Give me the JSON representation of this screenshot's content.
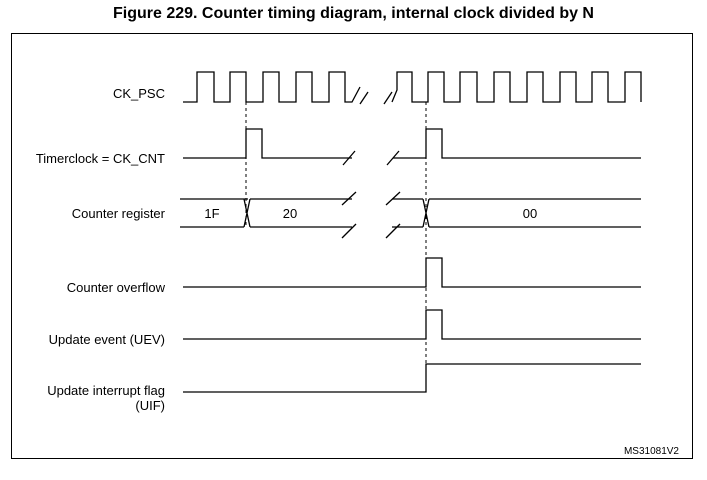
{
  "title": "Figure 229. Counter timing diagram, internal clock divided by N",
  "signals": [
    {
      "key": "ck_psc",
      "label": "CK_PSC"
    },
    {
      "key": "timerclock",
      "label": "Timerclock = CK_CNT"
    },
    {
      "key": "counter_register",
      "label": "Counter register"
    },
    {
      "key": "counter_overflow",
      "label": "Counter overflow"
    },
    {
      "key": "uev",
      "label": "Update event (UEV)"
    },
    {
      "key": "uif",
      "label_line1": "Update interrupt flag",
      "label_line2": "(UIF)"
    }
  ],
  "counter_values": [
    "1F",
    "20",
    "00"
  ],
  "reference": "MS31081V2"
}
